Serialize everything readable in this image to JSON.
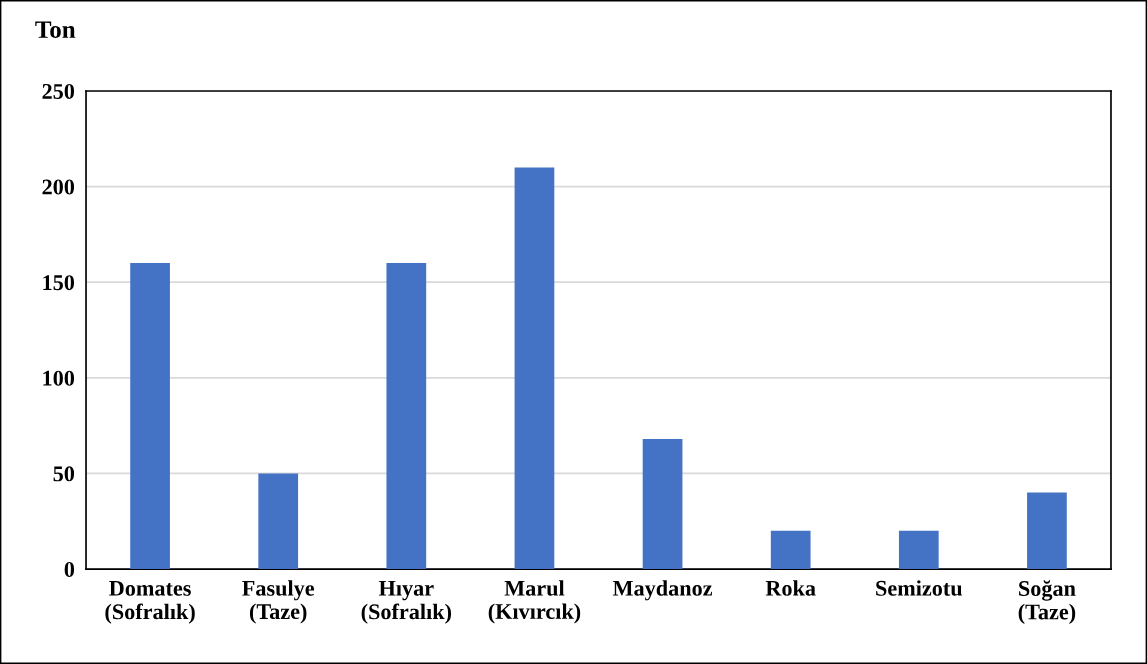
{
  "chart_data": {
    "type": "bar",
    "ylabel": "Ton",
    "categories": [
      "Domates\n(Sofralık)",
      "Fasulye\n(Taze)",
      "Hıyar\n(Sofralık)",
      "Marul\n(Kıvırcık)",
      "Maydanoz",
      "Roka",
      "Semizotu",
      "Soğan\n(Taze)"
    ],
    "values": [
      160,
      50,
      160,
      210,
      68,
      20,
      20,
      40
    ],
    "color": "#4472c4",
    "ylim": [
      0,
      250
    ],
    "yticks": [
      0,
      50,
      100,
      150,
      200,
      250
    ],
    "grid": "y",
    "legend": false
  }
}
